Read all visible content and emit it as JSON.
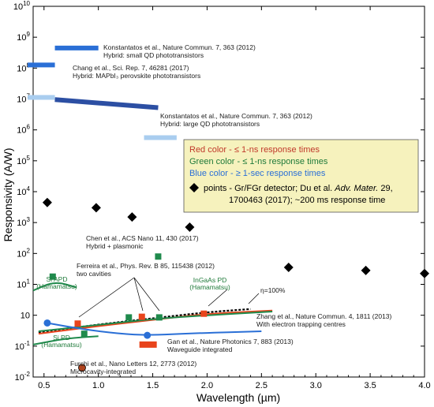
{
  "chart_data": {
    "type": "line",
    "xlabel": "Wavelength (µm)",
    "ylabel": "Responsivity (A/W)",
    "xlim": [
      0.4,
      4.0
    ],
    "ylim_log10": [
      -2,
      10
    ],
    "log_scale_y": true,
    "grid": false,
    "x_ticks": [
      "0.5",
      "1.0",
      "1.5",
      "2.0",
      "2.5",
      "3.0",
      "3.5",
      "4.0"
    ],
    "y_ticks": [
      {
        "base": "10",
        "exp": "-2"
      },
      {
        "base": "10",
        "exp": "-1"
      },
      {
        "base": "10",
        "exp": ""
      },
      {
        "base": "10",
        "exp": "1"
      },
      {
        "base": "10",
        "exp": "2"
      },
      {
        "base": "10",
        "exp": "3"
      },
      {
        "base": "10",
        "exp": "4"
      },
      {
        "base": "10",
        "exp": "5"
      },
      {
        "base": "10",
        "exp": "6"
      },
      {
        "base": "10",
        "exp": "7"
      },
      {
        "base": "10",
        "exp": "8"
      },
      {
        "base": "10",
        "exp": "9"
      },
      {
        "base": "10",
        "exp": "10"
      }
    ],
    "y_tick_values": [
      -2,
      -1,
      0,
      1,
      2,
      3,
      4,
      5,
      6,
      7,
      8,
      9,
      10
    ],
    "colors": {
      "red": "#e8441c",
      "green": "#1f8a4c",
      "blue": "#2a6fd6",
      "dark_blue": "#2c4fa3",
      "black": "#000000",
      "legend_bg": "#f6f2bd"
    },
    "gr_points": {
      "x": [
        0.53,
        0.98,
        1.31,
        1.84,
        2.75,
        3.46,
        4.0
      ],
      "log10_y": [
        3.65,
        3.48,
        3.18,
        2.85,
        1.55,
        1.45,
        1.35
      ]
    },
    "hybrid_bars": [
      {
        "x": [
          0.6,
          1.0
        ],
        "log10_y": [
          8.65,
          8.65
        ],
        "color": "#2a6fd6"
      },
      {
        "x": [
          0.35,
          0.6
        ],
        "log10_y": [
          8.1,
          8.1
        ],
        "color": "#2a6fd6"
      },
      {
        "x": [
          0.35,
          0.6
        ],
        "log10_y": [
          7.05,
          7.05
        ],
        "color": "#a9cdef"
      },
      {
        "x": [
          0.6,
          1.55
        ],
        "log10_y": [
          6.98,
          6.72
        ],
        "color": "#2c4fa3"
      },
      {
        "x": [
          1.42,
          1.72
        ],
        "log10_y": [
          5.75,
          5.75
        ],
        "color": "#a9cdef"
      }
    ],
    "red_points": {
      "x": [
        0.81,
        1.4,
        1.97
      ],
      "log10_y": [
        -0.27,
        -0.05,
        0.05
      ]
    },
    "green_points": {
      "x": [
        0.58,
        1.28,
        1.56,
        0.87,
        1.55
      ],
      "log10_y": [
        1.25,
        -0.07,
        -0.07,
        -0.6,
        1.9
      ]
    },
    "blue_points": {
      "x": [
        0.53,
        1.45
      ],
      "log10_y": [
        -0.25,
        -0.65
      ]
    },
    "series": [
      {
        "x": [
          0.45,
          1.0,
          1.5,
          2.0,
          2.4
        ],
        "log10_y": [
          -0.55,
          -0.3,
          -0.1,
          0.1,
          0.2
        ],
        "color": "#000000",
        "dashed": true
      },
      {
        "x": [
          0.45,
          1.0,
          1.5,
          2.0,
          2.6
        ],
        "log10_y": [
          -0.6,
          -0.35,
          -0.15,
          0.05,
          0.15
        ],
        "color": "#e8441c"
      },
      {
        "x": [
          0.45,
          0.9,
          1.5,
          2.0,
          2.6
        ],
        "log10_y": [
          -0.52,
          -0.35,
          -0.12,
          0.0,
          0.12
        ],
        "color": "#1f8a4c"
      },
      {
        "x": [
          0.53,
          0.85,
          1.2,
          1.45,
          1.9,
          2.5
        ],
        "log10_y": [
          -0.25,
          -0.45,
          -0.6,
          -0.65,
          -0.58,
          -0.52
        ],
        "color": "#2a6fd6"
      },
      {
        "x": [
          0.4,
          0.7,
          1.0
        ],
        "log10_y": [
          -0.95,
          -0.75,
          -0.68
        ],
        "color": "#1f8a4c"
      },
      {
        "x": [
          0.4,
          0.6,
          0.8
        ],
        "log10_y": [
          0.8,
          1.1,
          0.9
        ],
        "color": "#1f8a4c"
      }
    ],
    "annotations": [
      {
        "text": "Konstantatos et al., Nature Commun. 7, 363 (2012)",
        "sub": "Hybrid: small QD phototransistors"
      },
      {
        "text": "Chang et al., Sci. Rep. 7, 46281 (2017)",
        "sub": "Hybrid: MAPbI₃ perovskite phototransistors"
      },
      {
        "text": "Konstantatos et al., Nature Commun. 7, 363 (2012)",
        "sub": "Hybrid: large QD phototransistors"
      },
      {
        "text": "Chen et al., ACS Nano 11, 430 (2017)",
        "sub": "Hybrid + plasmonic"
      },
      {
        "text": "Ferreira et al., Phys. Rev. B 85, 115438 (2012)",
        "sub": "two cavities"
      },
      {
        "text": "Zhang et al., Nature Commun. 4, 1811 (2013)",
        "sub": "With electron trapping centres"
      },
      {
        "text": "Gan et al., Nature Photonics 7, 883 (2013)",
        "sub": "Waveguide integrated"
      },
      {
        "text": "Furchi et al., Nano Letters 12, 2773 (2012)",
        "sub": "Microcavity-integrated"
      }
    ],
    "eta_label": "η=100%",
    "device_labels": [
      {
        "line1": "Si APD",
        "line2": "(Hamamatsu)"
      },
      {
        "line1": "InGaAs PD",
        "line2": "(Hamamatsu)"
      },
      {
        "line1": "Si PD",
        "line2": "(Hamamatsu)"
      }
    ],
    "legend": {
      "red": "Red color - ≤ 1-ns response times",
      "green": "Green color - ≤ 1-ns response times",
      "blue": "Blue color - ≥ 1-sec response times",
      "points_line1": "points - Gr/FGr detector; Du et al.",
      "points_journal": "Adv. Mater.",
      "points_vol": "29,",
      "points_line2": "1700463 (2017); ~200 ms response time"
    }
  }
}
